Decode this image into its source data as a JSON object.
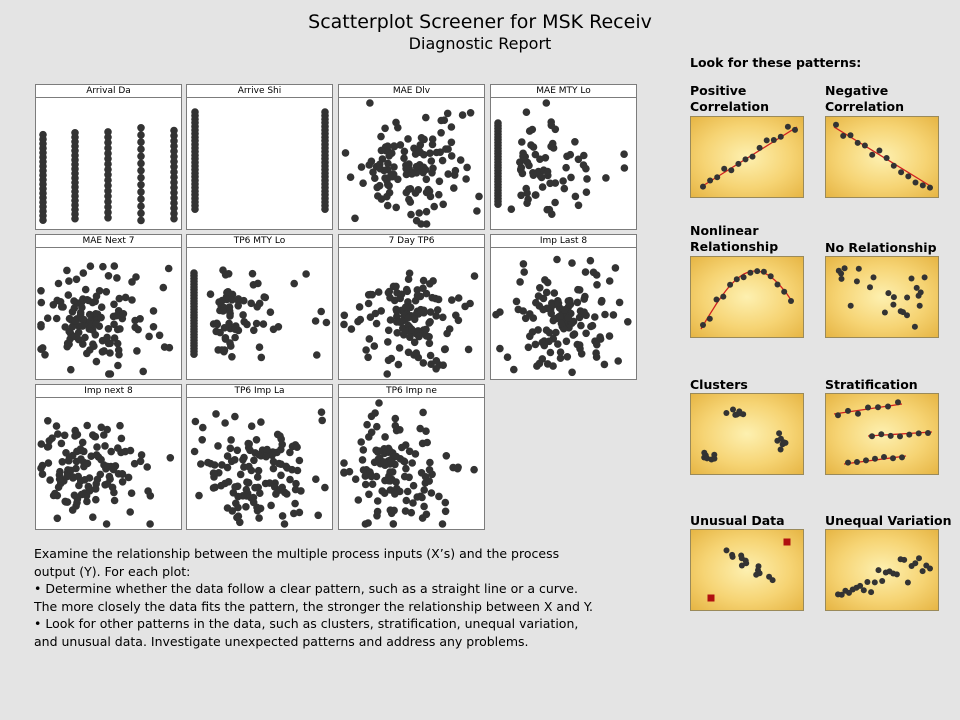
{
  "report": {
    "title": "Scatterplot Screener for MSK Receiv",
    "subtitle": "Diagnostic Report"
  },
  "plots": [
    {
      "label": "Arrival Da",
      "pattern": "columns6"
    },
    {
      "label": "Arrive Shi",
      "pattern": "columns2"
    },
    {
      "label": "MAE Dlv",
      "pattern": "cloud"
    },
    {
      "label": "MAE MTY Lo",
      "pattern": "leftcolumn"
    },
    {
      "label": "MAE Next 7",
      "pattern": "cloudleft"
    },
    {
      "label": "TP6 MTY Lo",
      "pattern": "leftcolumn"
    },
    {
      "label": "7 Day TP6",
      "pattern": "cloud"
    },
    {
      "label": "Imp Last 8",
      "pattern": "cloud"
    },
    {
      "label": "Imp next 8",
      "pattern": "cloudleft"
    },
    {
      "label": "TP6 Imp La",
      "pattern": "cloud"
    },
    {
      "label": "TP6 Imp ne",
      "pattern": "cloudleft"
    }
  ],
  "instructions": {
    "line1": "Examine the relationship between the multiple process inputs (X’s) and the process output (Y). For each plot:",
    "line2": "•  Determine whether the data follow a clear pattern, such as a straight line or a curve. The more closely the data fits the pattern, the stronger the relationship between X and Y.",
    "line3": "•  Look for other patterns in the data, such as clusters, stratification, unequal variation, and unusual data. Investigate unexpected patterns and address any problems."
  },
  "legend": {
    "heading": "Look for these patterns:",
    "patterns": [
      {
        "label": "Positive Correlation",
        "kind": "positive"
      },
      {
        "label": "Negative Correlation",
        "kind": "negative"
      },
      {
        "label": "Nonlinear Relationship",
        "kind": "nonlinear"
      },
      {
        "label": "No Relationship",
        "kind": "none"
      },
      {
        "label": "Clusters",
        "kind": "clusters"
      },
      {
        "label": "Stratification",
        "kind": "stratification"
      },
      {
        "label": "Unusual Data",
        "kind": "unusual"
      },
      {
        "label": "Unequal Variation",
        "kind": "unequal"
      }
    ]
  },
  "colors": {
    "point": "#333333",
    "fit_line": "#d02020",
    "outlier": "#b01010"
  }
}
